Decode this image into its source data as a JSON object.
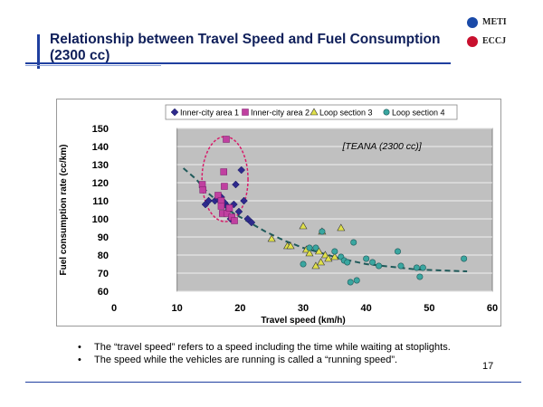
{
  "slide": {
    "title": "Relationship between Travel Speed and Fuel Consumption (2300 cc)",
    "logos": [
      {
        "name": "METI",
        "color": "#1a4aa8"
      },
      {
        "name": "ECCJ",
        "color": "#c8102e"
      }
    ],
    "bullets": [
      "The “travel speed” refers to a speed including the time while waiting at stoplights.",
      "The speed while the vehicles are running is called a “running speed”."
    ],
    "page_number": "17"
  },
  "chart_data": {
    "type": "scatter",
    "xlabel": "Travel speed (km/h)",
    "ylabel": "Fuel consumption rate (cc/km)",
    "xlim": [
      0,
      60
    ],
    "ylim": [
      60,
      150
    ],
    "x_ticks": [
      0,
      10,
      20,
      30,
      40,
      50,
      60
    ],
    "y_ticks": [
      60,
      70,
      80,
      90,
      100,
      110,
      120,
      130,
      140,
      150
    ],
    "grid": true,
    "plot_background": "#c0c0c0",
    "legend_position": "top",
    "annotation": "[TEANA (2300 cc)]",
    "series": [
      {
        "name": "Inner-city area 1",
        "marker": "diamond",
        "color": "#2e2a8c",
        "points": [
          [
            14.5,
            108
          ],
          [
            15,
            110
          ],
          [
            16,
            110
          ],
          [
            16.5,
            111
          ],
          [
            17,
            112
          ],
          [
            17.5,
            109
          ],
          [
            18,
            107
          ],
          [
            18.2,
            105
          ],
          [
            18.5,
            100
          ],
          [
            19,
            108
          ],
          [
            19.3,
            119
          ],
          [
            19.8,
            104
          ],
          [
            20.2,
            127
          ],
          [
            20.6,
            110
          ],
          [
            21.2,
            100
          ],
          [
            21.8,
            98
          ]
        ]
      },
      {
        "name": "Inner-city area 2",
        "marker": "square",
        "color": "#c040a0",
        "points": [
          [
            14,
            119
          ],
          [
            14.1,
            116
          ],
          [
            16.5,
            113
          ],
          [
            17,
            110
          ],
          [
            17,
            107
          ],
          [
            17.2,
            103
          ],
          [
            17.4,
            126
          ],
          [
            17.5,
            118
          ],
          [
            17.8,
            144
          ],
          [
            17.9,
            103
          ],
          [
            18.3,
            106
          ],
          [
            18.7,
            101
          ],
          [
            19.1,
            99
          ]
        ]
      },
      {
        "name": "Loop section 3",
        "marker": "triangle",
        "color": "#e0e04a",
        "points": [
          [
            25,
            89
          ],
          [
            27.5,
            85
          ],
          [
            28,
            85
          ],
          [
            30,
            96
          ],
          [
            30.5,
            83
          ],
          [
            31,
            81
          ],
          [
            32.5,
            82
          ],
          [
            32,
            74
          ],
          [
            32.8,
            76
          ],
          [
            33,
            93
          ],
          [
            33.5,
            80
          ],
          [
            34,
            78
          ],
          [
            35,
            79
          ],
          [
            36,
            95
          ]
        ]
      },
      {
        "name": "Loop section 4",
        "marker": "circle",
        "color": "#3aa6a0",
        "points": [
          [
            30,
            75
          ],
          [
            31,
            84
          ],
          [
            32,
            84
          ],
          [
            33,
            93
          ],
          [
            35,
            82
          ],
          [
            36,
            79
          ],
          [
            36.5,
            77
          ],
          [
            37,
            76
          ],
          [
            37.5,
            65
          ],
          [
            38.5,
            66
          ],
          [
            38,
            87
          ],
          [
            40,
            78
          ],
          [
            41,
            76
          ],
          [
            42,
            74
          ],
          [
            45,
            82
          ],
          [
            45.5,
            74
          ],
          [
            48,
            73
          ],
          [
            48.5,
            68
          ],
          [
            49,
            73
          ],
          [
            55.5,
            78
          ]
        ]
      }
    ],
    "trend_line": {
      "style": "dashed",
      "color": "#1f5a5a",
      "points": [
        [
          11,
          128
        ],
        [
          13,
          122
        ],
        [
          15,
          114
        ],
        [
          17,
          108
        ],
        [
          19,
          103
        ],
        [
          21,
          99
        ],
        [
          24,
          93
        ],
        [
          27,
          88
        ],
        [
          30,
          84
        ],
        [
          33,
          81
        ],
        [
          36,
          78
        ],
        [
          40,
          75
        ],
        [
          44,
          73.5
        ],
        [
          48,
          72
        ],
        [
          52,
          71.5
        ],
        [
          56,
          71
        ]
      ]
    }
  }
}
